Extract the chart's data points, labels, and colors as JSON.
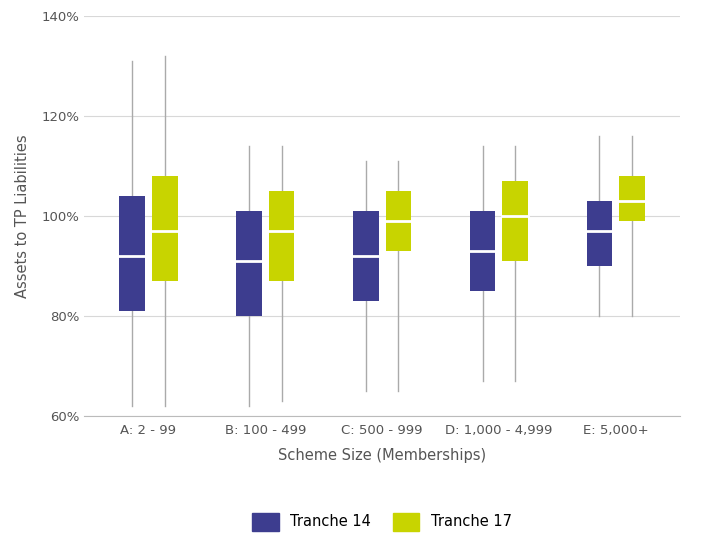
{
  "categories": [
    "A: 2 - 99",
    "B: 100 - 499",
    "C: 500 - 999",
    "D: 1,000 - 4,999",
    "E: 5,000+"
  ],
  "tranche14": [
    {
      "whislo": 62,
      "q1": 81,
      "med": 92,
      "q3": 104,
      "whishi": 131
    },
    {
      "whislo": 62,
      "q1": 80,
      "med": 91,
      "q3": 101,
      "whishi": 114
    },
    {
      "whislo": 65,
      "q1": 83,
      "med": 92,
      "q3": 101,
      "whishi": 111
    },
    {
      "whislo": 67,
      "q1": 85,
      "med": 93,
      "q3": 101,
      "whishi": 114
    },
    {
      "whislo": 80,
      "q1": 90,
      "med": 97,
      "q3": 103,
      "whishi": 116
    }
  ],
  "tranche17": [
    {
      "whislo": 62,
      "q1": 87,
      "med": 97,
      "q3": 108,
      "whishi": 132
    },
    {
      "whislo": 63,
      "q1": 87,
      "med": 97,
      "q3": 105,
      "whishi": 114
    },
    {
      "whislo": 65,
      "q1": 93,
      "med": 99,
      "q3": 105,
      "whishi": 111
    },
    {
      "whislo": 67,
      "q1": 91,
      "med": 100,
      "q3": 107,
      "whishi": 114
    },
    {
      "whislo": 80,
      "q1": 99,
      "med": 103,
      "q3": 108,
      "whishi": 116
    }
  ],
  "color_t14": "#3d3d8f",
  "color_t17": "#c8d400",
  "median_color": "white",
  "ylabel": "Assets to TP Liabilities",
  "xlabel": "Scheme Size (Memberships)",
  "ylim": [
    60,
    140
  ],
  "yticks": [
    60,
    80,
    100,
    120,
    140
  ],
  "legend_labels": [
    "Tranche 14",
    "Tranche 17"
  ],
  "background_color": "#ffffff",
  "grid_color": "#d8d8d8"
}
